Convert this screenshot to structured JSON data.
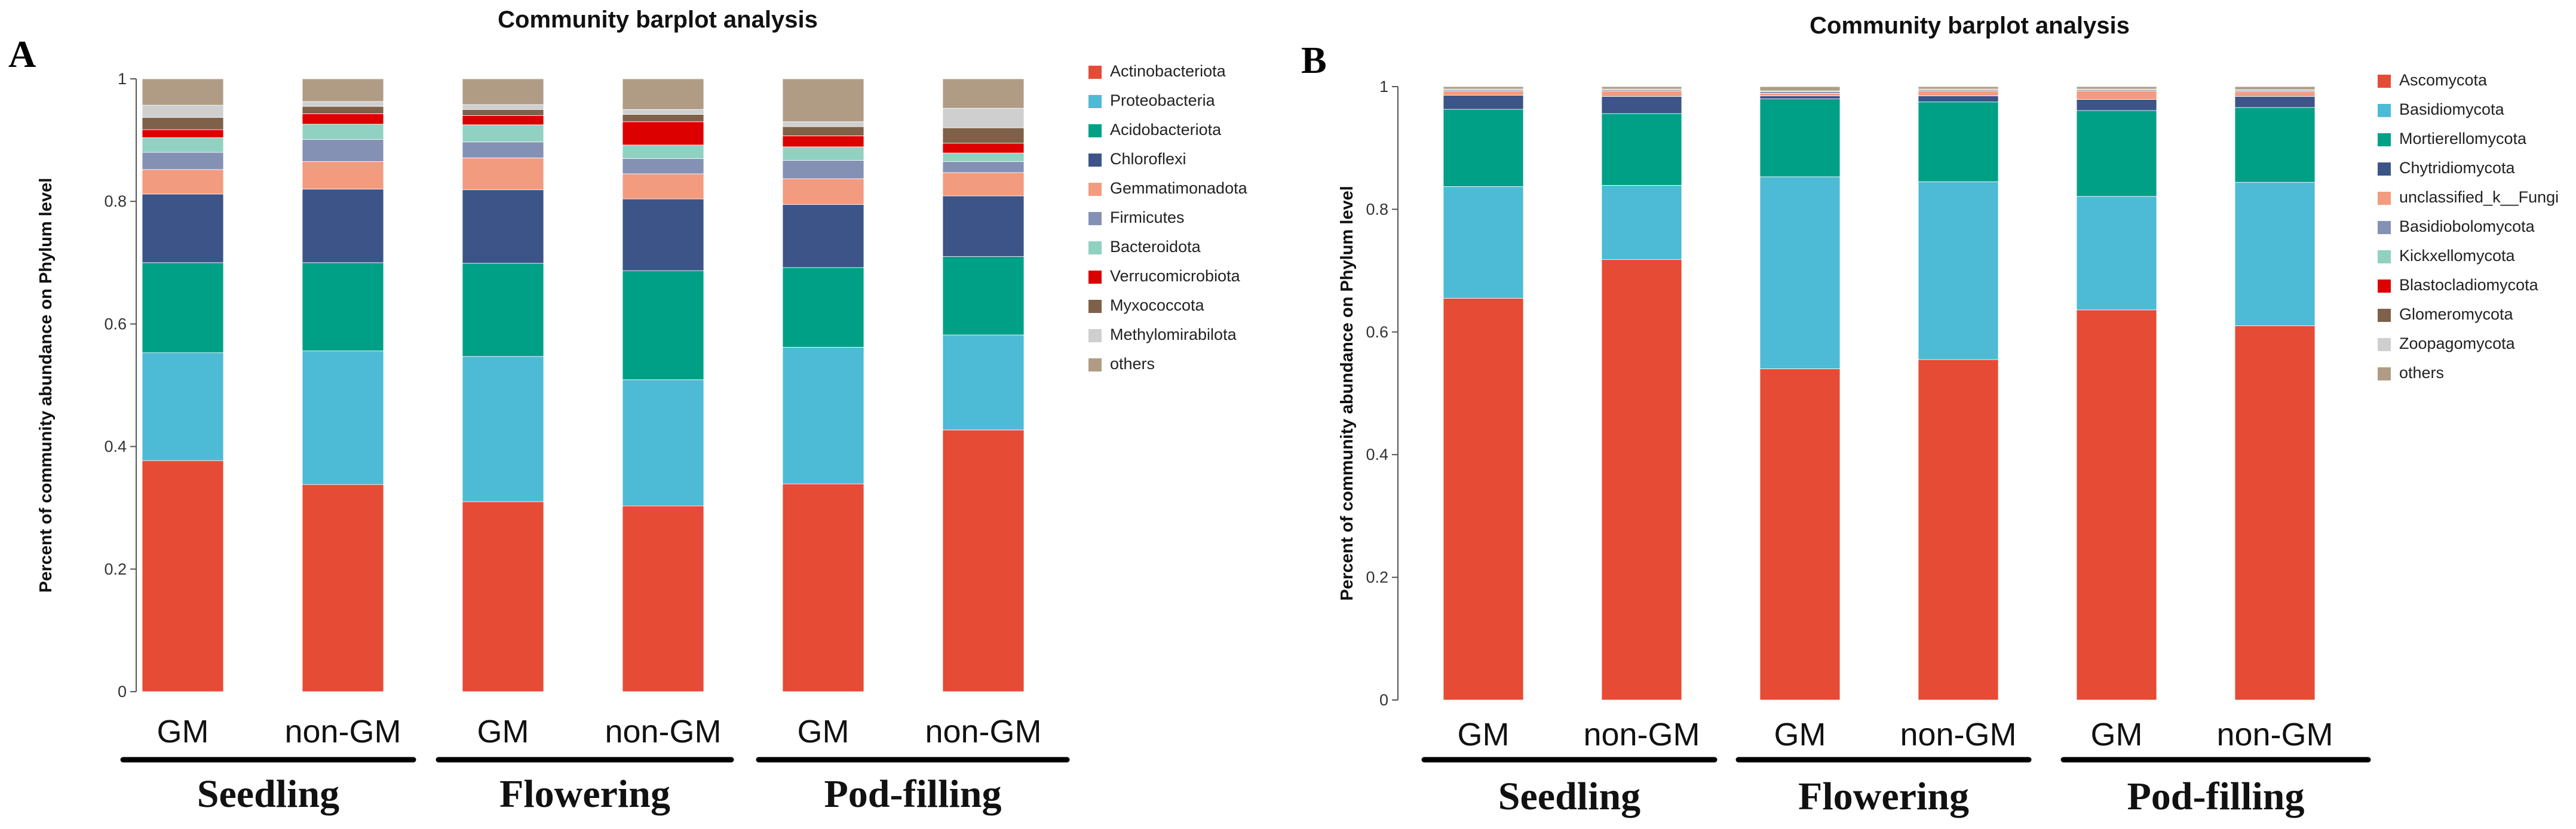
{
  "chart_data": [
    {
      "panel": "A",
      "type": "bar",
      "stacked": true,
      "title": "Community barplot analysis",
      "ylabel": "Percent of community abundance on Phylum level",
      "xlabel": "",
      "ylim": [
        0,
        1
      ],
      "yticks": [
        "0",
        "0.2",
        "0.4",
        "0.6",
        "0.8",
        "1"
      ],
      "categories": [
        "GM",
        "non-GM",
        "GM",
        "non-GM",
        "GM",
        "non-GM"
      ],
      "stages": [
        "Seedling",
        "Flowering",
        "Pod-filling"
      ],
      "legend_position": "right",
      "series": [
        {
          "name": "Actinobacteriota",
          "color": "#E64B35",
          "values": [
            0.377,
            0.338,
            0.31,
            0.303,
            0.339,
            0.427
          ]
        },
        {
          "name": "Proteobacteria",
          "color": "#4DBBD5",
          "values": [
            0.176,
            0.218,
            0.237,
            0.206,
            0.223,
            0.155
          ]
        },
        {
          "name": "Acidobacteriota",
          "color": "#00A087",
          "values": [
            0.147,
            0.144,
            0.152,
            0.178,
            0.13,
            0.128
          ]
        },
        {
          "name": "Chloroflexi",
          "color": "#3C5488",
          "values": [
            0.112,
            0.12,
            0.12,
            0.117,
            0.103,
            0.099
          ]
        },
        {
          "name": "Gemmatimonadota",
          "color": "#F39B7F",
          "values": [
            0.04,
            0.045,
            0.052,
            0.041,
            0.042,
            0.038
          ]
        },
        {
          "name": "Firmicutes",
          "color": "#8491B4",
          "values": [
            0.028,
            0.036,
            0.026,
            0.025,
            0.03,
            0.018
          ]
        },
        {
          "name": "Bacteroidota",
          "color": "#91D1C2",
          "values": [
            0.024,
            0.025,
            0.028,
            0.022,
            0.022,
            0.014
          ]
        },
        {
          "name": "Verrucomicrobiota",
          "color": "#DC0000",
          "values": [
            0.013,
            0.017,
            0.015,
            0.038,
            0.018,
            0.016
          ]
        },
        {
          "name": "Myxococcota",
          "color": "#7E6148",
          "values": [
            0.02,
            0.012,
            0.01,
            0.012,
            0.015,
            0.025
          ]
        },
        {
          "name": "Methylomirabilota",
          "color": "#CFCFCF",
          "values": [
            0.02,
            0.008,
            0.008,
            0.008,
            0.008,
            0.032
          ]
        },
        {
          "name": "others",
          "color": "#B09C85",
          "values": [
            0.043,
            0.037,
            0.042,
            0.05,
            0.07,
            0.048
          ]
        }
      ]
    },
    {
      "panel": "B",
      "type": "bar",
      "stacked": true,
      "title": "Community barplot analysis",
      "ylabel": "Percent of community abundance on Phylum level",
      "xlabel": "",
      "ylim": [
        0,
        1
      ],
      "yticks": [
        "0",
        "0.2",
        "0.4",
        "0.6",
        "0.8",
        "1"
      ],
      "categories": [
        "GM",
        "non-GM",
        "GM",
        "non-GM",
        "GM",
        "non-GM"
      ],
      "stages": [
        "Seedling",
        "Flowering",
        "Pod-filling"
      ],
      "legend_position": "right",
      "series": [
        {
          "name": "Ascomycota",
          "color": "#E64B35",
          "values": [
            0.655,
            0.718,
            0.54,
            0.555,
            0.636,
            0.61
          ]
        },
        {
          "name": "Basidiomycota",
          "color": "#4DBBD5",
          "values": [
            0.182,
            0.121,
            0.313,
            0.29,
            0.185,
            0.234
          ]
        },
        {
          "name": "Mortierellomycota",
          "color": "#00A087",
          "values": [
            0.126,
            0.117,
            0.127,
            0.13,
            0.14,
            0.122
          ]
        },
        {
          "name": "Chytridiomycota",
          "color": "#3C5488",
          "values": [
            0.023,
            0.028,
            0.005,
            0.01,
            0.018,
            0.018
          ]
        },
        {
          "name": "unclassified_k__Fungi",
          "color": "#F39B7F",
          "values": [
            0.007,
            0.009,
            0.004,
            0.008,
            0.014,
            0.008
          ]
        },
        {
          "name": "Basidiobolomycota",
          "color": "#8491B4",
          "values": [
            0.002,
            0.002,
            0.003,
            0.002,
            0.002,
            0.002
          ]
        },
        {
          "name": "Kickxellomycota",
          "color": "#91D1C2",
          "values": [
            0.001,
            0.001,
            0.001,
            0.001,
            0.001,
            0.001
          ]
        },
        {
          "name": "Blastocladiomycota",
          "color": "#DC0000",
          "values": [
            0.0,
            0.0,
            0.0,
            0.0,
            0.0,
            0.0
          ]
        },
        {
          "name": "Glomeromycota",
          "color": "#7E6148",
          "values": [
            0.0,
            0.0,
            0.0,
            0.0,
            0.0,
            0.0
          ]
        },
        {
          "name": "Zoopagomycota",
          "color": "#CFCFCF",
          "values": [
            0.0,
            0.0,
            0.0,
            0.0,
            0.0,
            0.0
          ]
        },
        {
          "name": "others",
          "color": "#B09C85",
          "values": [
            0.004,
            0.004,
            0.007,
            0.004,
            0.004,
            0.005
          ]
        }
      ]
    }
  ]
}
